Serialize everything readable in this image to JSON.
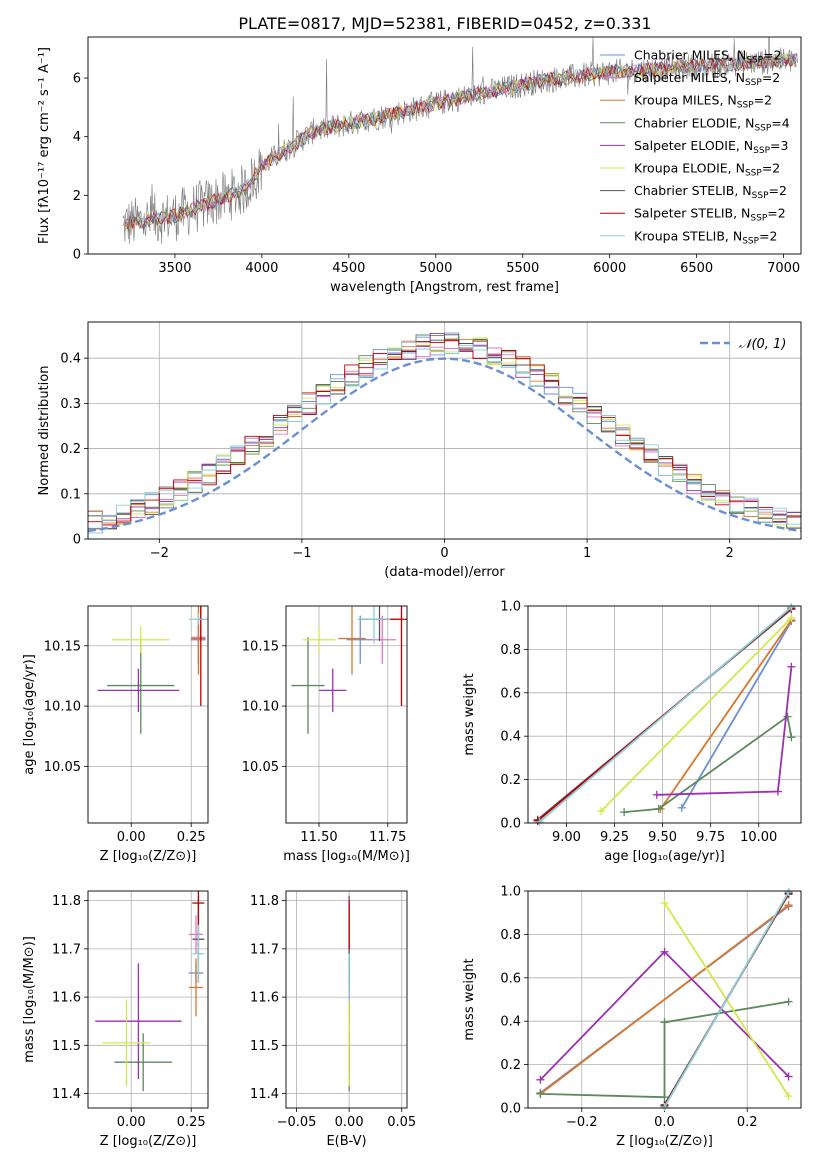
{
  "figure_title": "PLATE=0817, MJD=52381, FIBERID=0452, z=0.331",
  "legend_models": [
    {
      "label": "Chabrier MILES, N",
      "sub": "SSP",
      "suffix": "=2",
      "color": "#6b8fd6"
    },
    {
      "label": "Salpeter MILES, N",
      "sub": "SSP",
      "suffix": "=2",
      "color": "#e377c2"
    },
    {
      "label": "Kroupa MILES, N",
      "sub": "SSP",
      "suffix": "=2",
      "color": "#d9772b"
    },
    {
      "label": "Chabrier ELODIE, N",
      "sub": "SSP",
      "suffix": "=4",
      "color": "#5b8a5b"
    },
    {
      "label": "Salpeter ELODIE, N",
      "sub": "SSP",
      "suffix": "=3",
      "color": "#9b30b0"
    },
    {
      "label": "Kroupa ELODIE, N",
      "sub": "SSP",
      "suffix": "=2",
      "color": "#d4e84a"
    },
    {
      "label": "Chabrier STELIB, N",
      "sub": "SSP",
      "suffix": "=2",
      "color": "#555555"
    },
    {
      "label": "Salpeter STELIB, N",
      "sub": "SSP",
      "suffix": "=2",
      "color": "#c00000"
    },
    {
      "label": "Kroupa STELIB, N",
      "sub": "SSP",
      "suffix": "=2",
      "color": "#88d0d8"
    }
  ],
  "chart_data": [
    {
      "id": "spectrum",
      "type": "line",
      "xlabel": "wavelength [Angstrom, rest frame]",
      "ylabel": "Flux [fλ10⁻¹⁷ erg cm⁻² s⁻¹ A⁻¹]",
      "xlim": [
        3000,
        7100
      ],
      "ylim": [
        0,
        7.4
      ],
      "xticks": [
        3500,
        4000,
        4500,
        5000,
        5500,
        6000,
        6500,
        7000
      ],
      "yticks": [
        0,
        2,
        4,
        6
      ],
      "grid": false,
      "legend": "top-right",
      "continuum": {
        "x": [
          3200,
          3500,
          3900,
          4000,
          4300,
          4700,
          5200,
          5600,
          6000,
          6500,
          7000
        ],
        "y": [
          1.0,
          1.3,
          2.2,
          3.0,
          4.2,
          4.7,
          5.4,
          5.9,
          6.2,
          6.4,
          6.6
        ]
      }
    },
    {
      "id": "residual-histogram",
      "type": "step",
      "xlabel": "(data-model)/error",
      "ylabel": "Normed distribution",
      "xlim": [
        -2.5,
        2.5
      ],
      "ylim": [
        0,
        0.48
      ],
      "xticks": [
        -2,
        -1,
        0,
        1,
        2
      ],
      "yticks": [
        0.0,
        0.1,
        0.2,
        0.3,
        0.4
      ],
      "grid": true,
      "legend": "top-right",
      "reference_label": "𝒩(0, 1)",
      "reference_color": "#6b8fd6"
    },
    {
      "id": "age-vs-Z",
      "type": "errorbar",
      "xlabel": "Z [log₁₀(Z/Z⊙)]",
      "ylabel": "age  [log₁₀(age/yr)]",
      "xlim": [
        -0.18,
        0.32
      ],
      "ylim": [
        10.003,
        10.183
      ],
      "xticks": [
        0.0,
        0.25
      ],
      "xticklabels": [
        "0.00",
        "0.25"
      ],
      "yticks": [
        10.05,
        10.1,
        10.15
      ],
      "yticklabels": [
        "10.05",
        "10.10",
        "10.15"
      ],
      "grid": true,
      "points": [
        {
          "x": 0.28,
          "y": 10.155,
          "xerr": 0.03,
          "yerr": 0.02,
          "color": "#6b8fd6"
        },
        {
          "x": 0.28,
          "y": 10.157,
          "xerr": 0.03,
          "yerr": 0.02,
          "color": "#e377c2"
        },
        {
          "x": 0.28,
          "y": 10.156,
          "xerr": 0.03,
          "yerr": 0.03,
          "color": "#d9772b"
        },
        {
          "x": 0.04,
          "y": 10.117,
          "xerr": 0.14,
          "yerr": 0.04,
          "color": "#5b8a5b"
        },
        {
          "x": 0.03,
          "y": 10.113,
          "xerr": 0.17,
          "yerr": 0.018,
          "color": "#9b30b0"
        },
        {
          "x": 0.04,
          "y": 10.155,
          "xerr": 0.12,
          "yerr": 0.011,
          "color": "#d4e84a"
        },
        {
          "x": 0.29,
          "y": 10.172,
          "xerr": 0.01,
          "yerr": 0.018,
          "color": "#555555"
        },
        {
          "x": 0.29,
          "y": 10.172,
          "xerr": 0.01,
          "yerr": 0.072,
          "color": "#c00000"
        },
        {
          "x": 0.28,
          "y": 10.172,
          "xerr": 0.04,
          "yerr": 0.005,
          "color": "#88d0d8"
        }
      ]
    },
    {
      "id": "age-vs-mass",
      "type": "errorbar",
      "xlabel": "mass [log₁₀(M/M⊙)]",
      "ylabel": "",
      "xlim": [
        11.38,
        11.82
      ],
      "ylim": [
        10.003,
        10.183
      ],
      "xticks": [
        11.5,
        11.75
      ],
      "xticklabels": [
        "11.50",
        "11.75"
      ],
      "yticks": [
        10.05,
        10.1,
        10.15
      ],
      "yticklabels": [
        "10.05",
        "10.10",
        "10.15"
      ],
      "grid": true,
      "points": [
        {
          "x": 11.65,
          "y": 10.155,
          "xerr": 0.05,
          "yerr": 0.02,
          "color": "#6b8fd6"
        },
        {
          "x": 11.73,
          "y": 10.155,
          "xerr": 0.05,
          "yerr": 0.02,
          "color": "#e377c2"
        },
        {
          "x": 11.62,
          "y": 10.156,
          "xerr": 0.05,
          "yerr": 0.03,
          "color": "#d9772b"
        },
        {
          "x": 11.46,
          "y": 10.117,
          "xerr": 0.06,
          "yerr": 0.04,
          "color": "#5b8a5b"
        },
        {
          "x": 11.55,
          "y": 10.113,
          "xerr": 0.05,
          "yerr": 0.018,
          "color": "#9b30b0"
        },
        {
          "x": 11.5,
          "y": 10.155,
          "xerr": 0.06,
          "yerr": 0.011,
          "color": "#d4e84a"
        },
        {
          "x": 11.72,
          "y": 10.172,
          "xerr": 0.07,
          "yerr": 0.018,
          "color": "#555555"
        },
        {
          "x": 11.8,
          "y": 10.172,
          "xerr": 0.08,
          "yerr": 0.072,
          "color": "#c00000"
        },
        {
          "x": 11.7,
          "y": 10.172,
          "xerr": 0.06,
          "yerr": 0.02,
          "color": "#88d0d8"
        }
      ]
    },
    {
      "id": "mass-weight-vs-age",
      "type": "line",
      "xlabel": "age  [log₁₀(age/yr)]",
      "ylabel": "mass weight",
      "xlim": [
        8.8,
        10.22
      ],
      "ylim": [
        0.0,
        1.0
      ],
      "xticks": [
        9.0,
        9.25,
        9.5,
        9.75,
        10.0
      ],
      "xticklabels": [
        "9.00",
        "9.25",
        "9.50",
        "9.75",
        "10.00"
      ],
      "yticks": [
        0.0,
        0.2,
        0.4,
        0.6,
        0.8,
        1.0
      ],
      "yticklabels": [
        "0.0",
        "0.2",
        "0.4",
        "0.6",
        "0.8",
        "1.0"
      ],
      "grid": true,
      "series": [
        {
          "color": "#6b8fd6",
          "x": [
            9.6,
            10.17
          ],
          "y": [
            0.07,
            0.93
          ]
        },
        {
          "color": "#e377c2",
          "x": [
            8.85,
            10.17
          ],
          "y": [
            0.01,
            0.99
          ]
        },
        {
          "color": "#d9772b",
          "x": [
            9.49,
            10.17
          ],
          "y": [
            0.065,
            0.935
          ]
        },
        {
          "color": "#5b8a5b",
          "x": [
            9.3,
            9.48,
            10.15,
            10.17
          ],
          "y": [
            0.05,
            0.065,
            0.49,
            0.395
          ]
        },
        {
          "color": "#9b30b0",
          "x": [
            9.47,
            10.1,
            10.17
          ],
          "y": [
            0.13,
            0.145,
            0.72
          ]
        },
        {
          "color": "#d4e84a",
          "x": [
            9.18,
            10.17
          ],
          "y": [
            0.055,
            0.945
          ]
        },
        {
          "color": "#555555",
          "x": [
            8.85,
            10.17
          ],
          "y": [
            0.015,
            0.985
          ]
        },
        {
          "color": "#c00000",
          "x": [
            8.85,
            10.17
          ],
          "y": [
            0.01,
            0.99
          ]
        },
        {
          "color": "#88d0d8",
          "x": [
            8.86,
            10.17
          ],
          "y": [
            0.005,
            0.995
          ]
        }
      ]
    },
    {
      "id": "mass-vs-Z",
      "type": "errorbar",
      "xlabel": "Z [log₁₀(Z/Z⊙)]",
      "ylabel": "mass [log₁₀(M/M⊙)]",
      "xlim": [
        -0.18,
        0.32
      ],
      "ylim": [
        11.37,
        11.82
      ],
      "xticks": [
        0.0,
        0.25
      ],
      "xticklabels": [
        "0.00",
        "0.25"
      ],
      "yticks": [
        11.4,
        11.5,
        11.6,
        11.7,
        11.8
      ],
      "yticklabels": [
        "11.4",
        "11.5",
        "11.6",
        "11.7",
        "11.8"
      ],
      "grid": true,
      "points": [
        {
          "x": 0.27,
          "y": 11.65,
          "xerr": 0.03,
          "yerr": 0.02,
          "color": "#6b8fd6"
        },
        {
          "x": 0.27,
          "y": 11.73,
          "xerr": 0.03,
          "yerr": 0.04,
          "color": "#e377c2"
        },
        {
          "x": 0.27,
          "y": 11.62,
          "xerr": 0.03,
          "yerr": 0.06,
          "color": "#d9772b"
        },
        {
          "x": 0.05,
          "y": 11.465,
          "xerr": 0.12,
          "yerr": 0.06,
          "color": "#5b8a5b"
        },
        {
          "x": 0.03,
          "y": 11.55,
          "xerr": 0.18,
          "yerr": 0.12,
          "color": "#9b30b0"
        },
        {
          "x": -0.02,
          "y": 11.505,
          "xerr": 0.1,
          "yerr": 0.09,
          "color": "#d4e84a"
        },
        {
          "x": 0.28,
          "y": 11.72,
          "xerr": 0.025,
          "yerr": 0.09,
          "color": "#555555"
        },
        {
          "x": 0.28,
          "y": 11.795,
          "xerr": 0.025,
          "yerr": 0.09,
          "color": "#c00000"
        },
        {
          "x": 0.28,
          "y": 11.69,
          "xerr": 0.025,
          "yerr": 0.06,
          "color": "#88d0d8"
        }
      ]
    },
    {
      "id": "mass-vs-EBV",
      "type": "errorbar",
      "xlabel": "E(B-V)",
      "ylabel": "",
      "xlim": [
        -0.06,
        0.055
      ],
      "ylim": [
        11.37,
        11.82
      ],
      "xticks": [
        -0.05,
        0.0,
        0.05
      ],
      "xticklabels": [
        "−0.05",
        "0.00",
        "0.05"
      ],
      "yticks": [
        11.4,
        11.5,
        11.6,
        11.7,
        11.8
      ],
      "yticklabels": [
        "11.4",
        "11.5",
        "11.6",
        "11.7",
        "11.8"
      ],
      "grid": true,
      "points": [
        {
          "x": 0.0,
          "y": 11.65,
          "xerr": 0.0,
          "yerr": 0.04,
          "color": "#6b8fd6"
        },
        {
          "x": 0.0,
          "y": 11.73,
          "xerr": 0.0,
          "yerr": 0.04,
          "color": "#e377c2"
        },
        {
          "x": 0.0,
          "y": 11.62,
          "xerr": 0.0,
          "yerr": 0.06,
          "color": "#d9772b"
        },
        {
          "x": 0.0,
          "y": 11.465,
          "xerr": 0.0,
          "yerr": 0.06,
          "color": "#5b8a5b"
        },
        {
          "x": 0.0,
          "y": 11.55,
          "xerr": 0.0,
          "yerr": 0.12,
          "color": "#9b30b0"
        },
        {
          "x": 0.0,
          "y": 11.505,
          "xerr": 0.0,
          "yerr": 0.09,
          "color": "#d4e84a"
        },
        {
          "x": 0.0,
          "y": 11.72,
          "xerr": 0.0,
          "yerr": 0.09,
          "color": "#555555"
        },
        {
          "x": 0.0,
          "y": 11.75,
          "xerr": 0.0,
          "yerr": 0.05,
          "color": "#c00000"
        },
        {
          "x": 0.0,
          "y": 11.64,
          "xerr": 0.0,
          "yerr": 0.05,
          "color": "#88d0d8"
        }
      ]
    },
    {
      "id": "mass-weight-vs-Z",
      "type": "line",
      "xlabel": "Z [log₁₀(Z/Z⊙)]",
      "ylabel": "mass weight",
      "xlim": [
        -0.33,
        0.33
      ],
      "ylim": [
        0.0,
        1.0
      ],
      "xticks": [
        -0.2,
        0.0,
        0.2
      ],
      "xticklabels": [
        "−0.2",
        "0.0",
        "0.2"
      ],
      "yticks": [
        0.0,
        0.2,
        0.4,
        0.6,
        0.8,
        1.0
      ],
      "yticklabels": [
        "0.0",
        "0.2",
        "0.4",
        "0.6",
        "0.8",
        "1.0"
      ],
      "grid": true,
      "series": [
        {
          "color": "#6b8fd6",
          "x": [
            -0.3,
            0.3
          ],
          "y": [
            0.07,
            0.93
          ]
        },
        {
          "color": "#e377c2",
          "x": [
            0.0,
            0.3
          ],
          "y": [
            0.01,
            0.99
          ]
        },
        {
          "color": "#d9772b",
          "x": [
            -0.3,
            0.3
          ],
          "y": [
            0.065,
            0.935
          ]
        },
        {
          "color": "#5b8a5b",
          "x": [
            -0.3,
            0.0,
            0.0,
            0.3
          ],
          "y": [
            0.065,
            0.05,
            0.395,
            0.49
          ]
        },
        {
          "color": "#9b30b0",
          "x": [
            -0.3,
            0.0,
            0.3
          ],
          "y": [
            0.13,
            0.72,
            0.145
          ]
        },
        {
          "color": "#d4e84a",
          "x": [
            0.0,
            0.3
          ],
          "y": [
            0.945,
            0.055
          ]
        },
        {
          "color": "#555555",
          "x": [
            0.0,
            0.3
          ],
          "y": [
            0.015,
            0.985
          ]
        },
        {
          "color": "#c00000",
          "x": [
            0.0,
            0.3
          ],
          "y": [
            0.01,
            0.99
          ]
        },
        {
          "color": "#88d0d8",
          "x": [
            0.0,
            0.3
          ],
          "y": [
            0.005,
            0.995
          ]
        }
      ]
    }
  ]
}
